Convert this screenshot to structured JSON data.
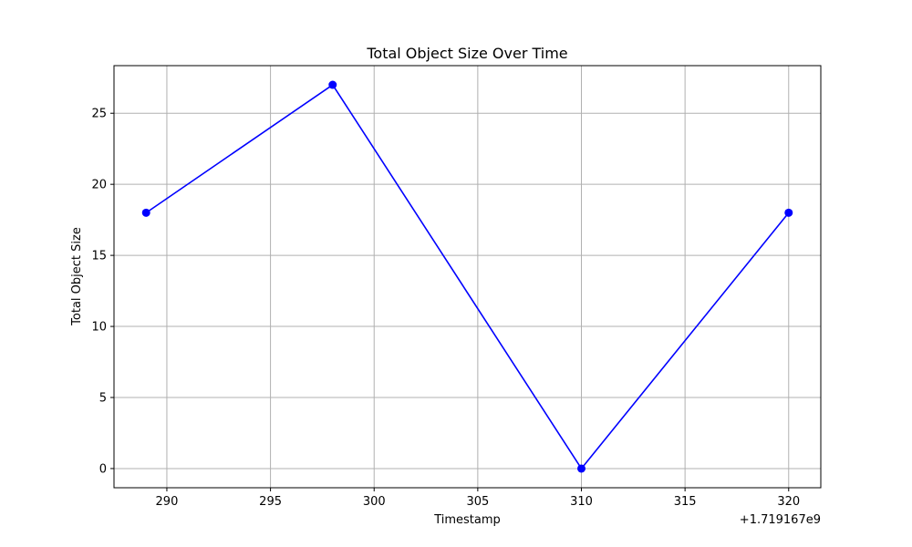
{
  "chart_data": {
    "type": "line",
    "title": "Total Object Size Over Time",
    "xlabel": "Timestamp",
    "ylabel": "Total Object Size",
    "x_offset_label": "+1.719167e9",
    "x": [
      1719167289,
      1719167298,
      1719167310,
      1719167320
    ],
    "x_ticks": [
      1719167290,
      1719167295,
      1719167300,
      1719167305,
      1719167310,
      1719167315,
      1719167320
    ],
    "x_tick_labels": [
      "290",
      "295",
      "300",
      "305",
      "310",
      "315",
      "320"
    ],
    "xlim": [
      1719167287.45,
      1719167321.55
    ],
    "series": [
      {
        "values": [
          18,
          27,
          0,
          18
        ],
        "color": "#0000ff",
        "marker": "circle"
      }
    ],
    "y_ticks": [
      0,
      5,
      10,
      15,
      20,
      25
    ],
    "y_tick_labels": [
      "0",
      "5",
      "10",
      "15",
      "20",
      "25"
    ],
    "ylim": [
      -1.35,
      28.35
    ],
    "grid": true,
    "colors": {
      "grid": "#b0b0b0",
      "axes": "#000000",
      "line": "#0000ff"
    }
  }
}
